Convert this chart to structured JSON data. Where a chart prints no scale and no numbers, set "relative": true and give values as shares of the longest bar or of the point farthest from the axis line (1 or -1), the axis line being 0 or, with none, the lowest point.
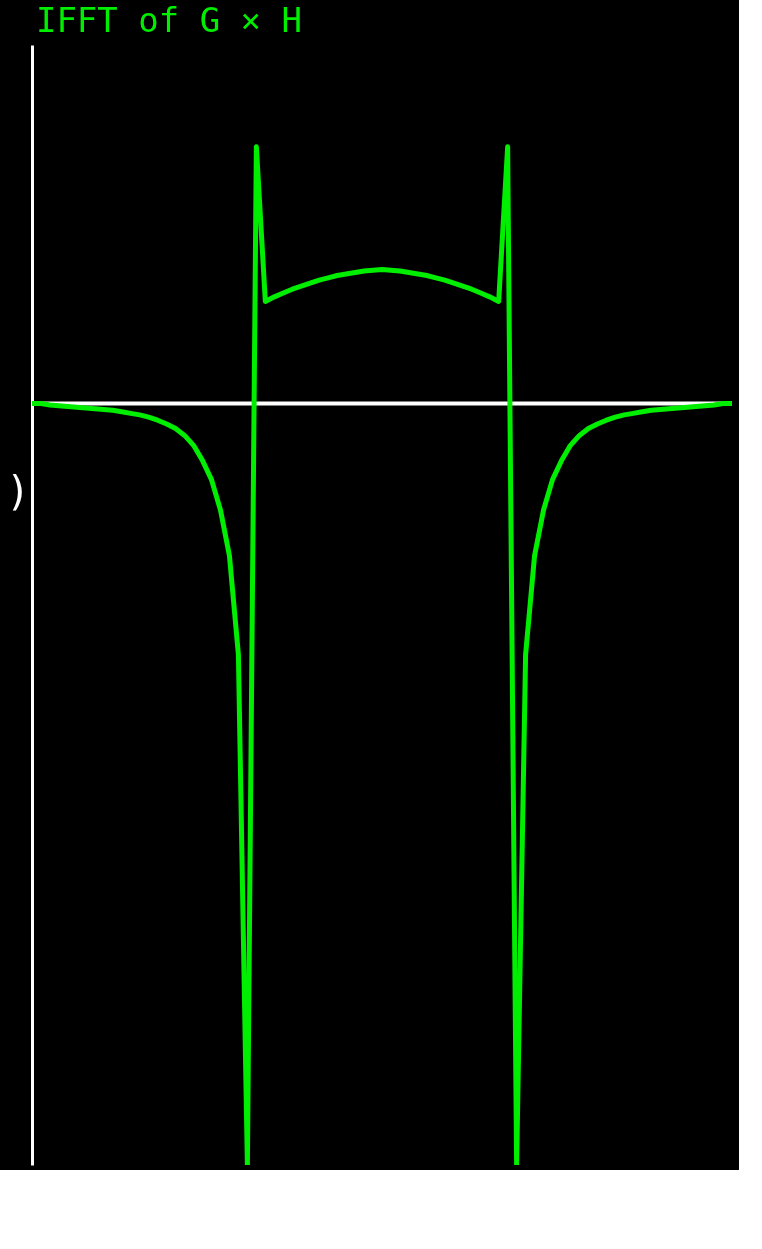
{
  "chart_data": {
    "type": "line",
    "title": "IFFT  of  G × H",
    "relative": true,
    "marker": "none",
    "line_style": "solid",
    "annotations": [
      ")"
    ],
    "categories": [
      null,
      null,
      null,
      null,
      null,
      null,
      null,
      null,
      null,
      null,
      null,
      null,
      null,
      null,
      null,
      null,
      null,
      null,
      null,
      null,
      null,
      null,
      null,
      null,
      null,
      null,
      null,
      null,
      null,
      null,
      null,
      null,
      null,
      null,
      null,
      null,
      null,
      null,
      null,
      null,
      null,
      null,
      null,
      null,
      null,
      null,
      null,
      null,
      null,
      null,
      null,
      null,
      null,
      null,
      null,
      null,
      null,
      null,
      null,
      null,
      null,
      null,
      null,
      null,
      null,
      null,
      null,
      null,
      null,
      null,
      null,
      null,
      null,
      null,
      null,
      null,
      null,
      null,
      null
    ],
    "series": [
      {
        "color": "#00ee00",
        "values": [
          0,
          0,
          -0.002,
          -0.003,
          -0.004,
          -0.005,
          -0.006,
          -0.007,
          -0.008,
          -0.009,
          -0.011,
          -0.013,
          -0.015,
          -0.018,
          -0.022,
          -0.027,
          -0.033,
          -0.042,
          -0.055,
          -0.075,
          -0.1,
          -0.14,
          -0.2,
          -0.33,
          -1,
          0.337,
          0.134,
          0.14,
          0.145,
          0.15,
          0.154,
          0.158,
          0.162,
          0.165,
          0.168,
          0.17,
          0.172,
          0.174,
          0.175,
          0.176,
          0.175,
          0.174,
          0.172,
          0.17,
          0.168,
          0.165,
          0.162,
          0.158,
          0.154,
          0.15,
          0.145,
          0.14,
          0.134,
          0.337,
          -1,
          -0.33,
          -0.2,
          -0.14,
          -0.1,
          -0.075,
          -0.055,
          -0.042,
          -0.033,
          -0.027,
          -0.022,
          -0.018,
          -0.015,
          -0.013,
          -0.011,
          -0.009,
          -0.008,
          -0.007,
          -0.006,
          -0.005,
          -0.004,
          -0.003,
          -0.002,
          0,
          0
        ]
      }
    ]
  }
}
